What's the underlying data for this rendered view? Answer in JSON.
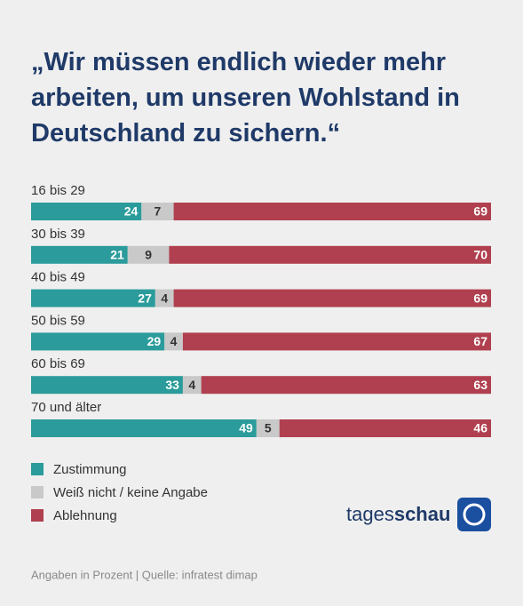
{
  "chart_data": {
    "type": "stacked-bar-horizontal",
    "title": "„Wir müssen endlich wieder mehr arbeiten, um unseren Wohlstand in Deutschland zu sichern.“",
    "categories": [
      "16 bis 29",
      "30 bis 39",
      "40 bis 49",
      "50 bis 59",
      "60 bis 69",
      "70 und älter"
    ],
    "series": [
      {
        "name": "Zustimmung",
        "color": "#2b9b9b",
        "values": [
          24,
          21,
          27,
          29,
          33,
          49
        ]
      },
      {
        "name": "Weiß nicht / keine Angabe",
        "color": "#c9c9c9",
        "values": [
          7,
          9,
          4,
          4,
          4,
          5
        ]
      },
      {
        "name": "Ablehnung",
        "color": "#b0404f",
        "values": [
          69,
          70,
          69,
          67,
          63,
          46
        ]
      }
    ],
    "xlim": [
      0,
      100
    ],
    "brand": [
      "tages",
      "schau"
    ],
    "source": "Angaben in Prozent | Quelle: infratest dimap"
  }
}
